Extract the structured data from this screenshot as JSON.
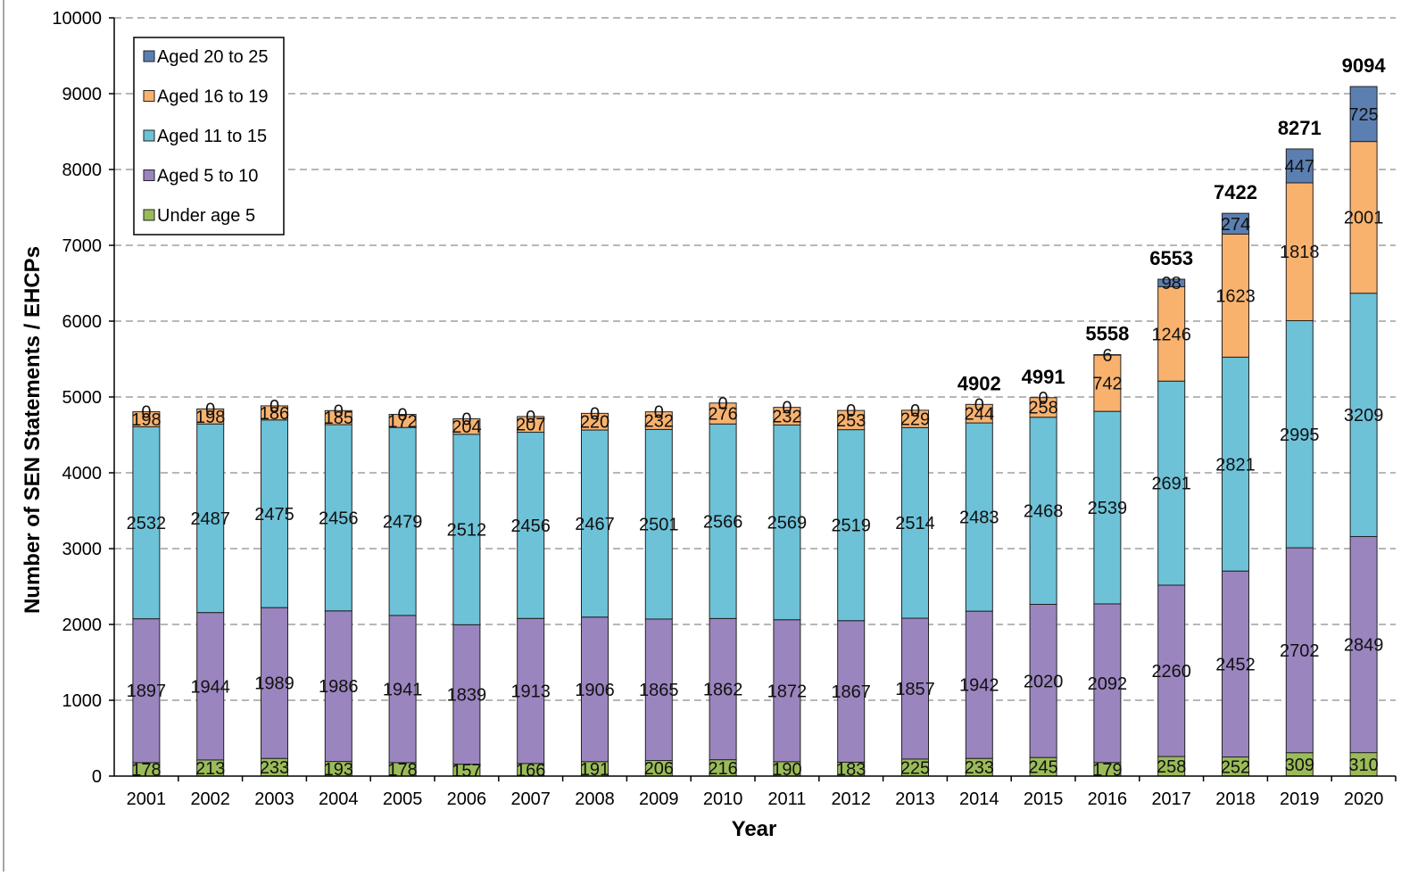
{
  "chart_data": {
    "type": "bar",
    "stacked": true,
    "title": "",
    "xlabel": "Year",
    "ylabel": "Number of SEN Statements / EHCPs",
    "ylim": [
      0,
      10000
    ],
    "yticks": [
      0,
      1000,
      2000,
      3000,
      4000,
      5000,
      6000,
      7000,
      8000,
      9000,
      10000
    ],
    "grid": "horizontal-dashed",
    "legend_position": "top-left",
    "categories": [
      "2001",
      "2002",
      "2003",
      "2004",
      "2005",
      "2006",
      "2007",
      "2008",
      "2009",
      "2010",
      "2011",
      "2012",
      "2013",
      "2014",
      "2015",
      "2016",
      "2017",
      "2018",
      "2019",
      "2020"
    ],
    "series": [
      {
        "name": "Under age 5",
        "color": "#9bbb59",
        "values": [
          178,
          213,
          233,
          193,
          178,
          157,
          166,
          191,
          206,
          216,
          190,
          183,
          225,
          233,
          245,
          179,
          258,
          252,
          309,
          310
        ]
      },
      {
        "name": "Aged 5 to 10",
        "color": "#9b85bf",
        "values": [
          1897,
          1944,
          1989,
          1986,
          1941,
          1839,
          1913,
          1906,
          1865,
          1862,
          1872,
          1867,
          1857,
          1942,
          2020,
          2092,
          2260,
          2452,
          2702,
          2849
        ]
      },
      {
        "name": "Aged 11 to 15",
        "color": "#6dc2d8",
        "values": [
          2532,
          2487,
          2475,
          2456,
          2479,
          2512,
          2456,
          2467,
          2501,
          2566,
          2569,
          2519,
          2514,
          2483,
          2468,
          2539,
          2691,
          2821,
          2995,
          3209
        ]
      },
      {
        "name": "Aged 16 to 19",
        "color": "#f9b26e",
        "values": [
          198,
          198,
          186,
          185,
          172,
          204,
          207,
          220,
          232,
          276,
          232,
          253,
          229,
          244,
          258,
          742,
          1246,
          1623,
          1818,
          2001
        ]
      },
      {
        "name": "Aged 20 to 25",
        "color": "#5b7fb1",
        "values": [
          0,
          0,
          0,
          0,
          0,
          0,
          0,
          0,
          0,
          0,
          0,
          0,
          0,
          0,
          0,
          6,
          98,
          274,
          447,
          725
        ]
      }
    ],
    "totals": [
      {
        "year": "2014",
        "value": 4902
      },
      {
        "year": "2015",
        "value": 4991
      },
      {
        "year": "2016",
        "value": 5558
      },
      {
        "year": "2017",
        "value": 6553
      },
      {
        "year": "2018",
        "value": 7422
      },
      {
        "year": "2019",
        "value": 8271
      },
      {
        "year": "2020",
        "value": 9094
      }
    ]
  }
}
